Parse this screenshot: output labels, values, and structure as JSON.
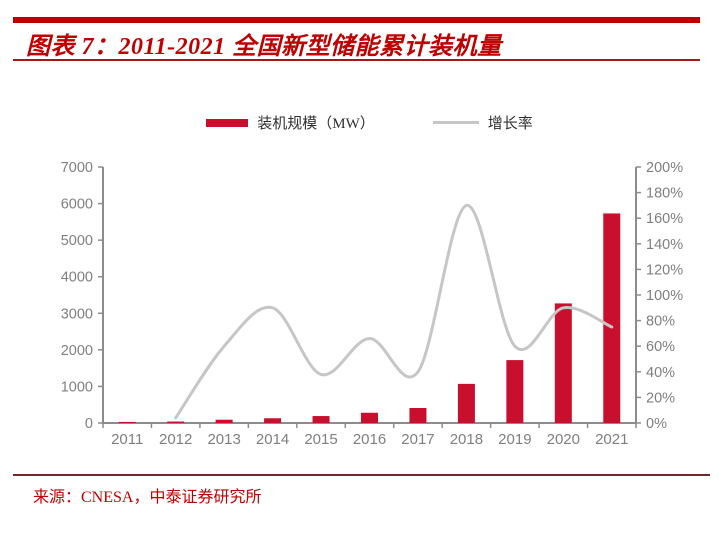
{
  "header": {
    "title": "图表 7：2011-2021 全国新型储能累计装机量"
  },
  "footer": {
    "source": "来源：CNESA，中泰证券研究所"
  },
  "colors": {
    "accent_red": "#c00000",
    "bar": "#c8102e",
    "line": "#c6c6c6",
    "axis": "#8c8c8c",
    "tick_label": "#7f7f7f",
    "legend_text": "#303030"
  },
  "chart_data": {
    "type": "bar+line",
    "categories": [
      "2011",
      "2012",
      "2013",
      "2014",
      "2015",
      "2016",
      "2017",
      "2018",
      "2019",
      "2020",
      "2021"
    ],
    "series": [
      {
        "name": "装机规模（MW）",
        "type": "bar",
        "axis": "left",
        "values": [
          30,
          40,
          90,
          130,
          190,
          280,
          410,
          1070,
          1720,
          3270,
          5730
        ]
      },
      {
        "name": "增长率",
        "type": "line",
        "axis": "right",
        "values": [
          null,
          4,
          60,
          90,
          38,
          66,
          40,
          170,
          60,
          90,
          75
        ]
      }
    ],
    "left_axis": {
      "min": 0,
      "max": 7000,
      "step": 1000,
      "ticks": [
        "0",
        "1000",
        "2000",
        "3000",
        "4000",
        "5000",
        "6000",
        "7000"
      ]
    },
    "right_axis": {
      "min": 0,
      "max": 200,
      "step": 20,
      "ticks": [
        "0%",
        "20%",
        "40%",
        "60%",
        "80%",
        "100%",
        "120%",
        "140%",
        "160%",
        "180%",
        "200%"
      ]
    },
    "legend": [
      {
        "swatch": "bar",
        "label": "装机规模（MW）"
      },
      {
        "swatch": "line",
        "label": "增长率"
      }
    ],
    "grid": false,
    "legend_position": "top-center"
  }
}
